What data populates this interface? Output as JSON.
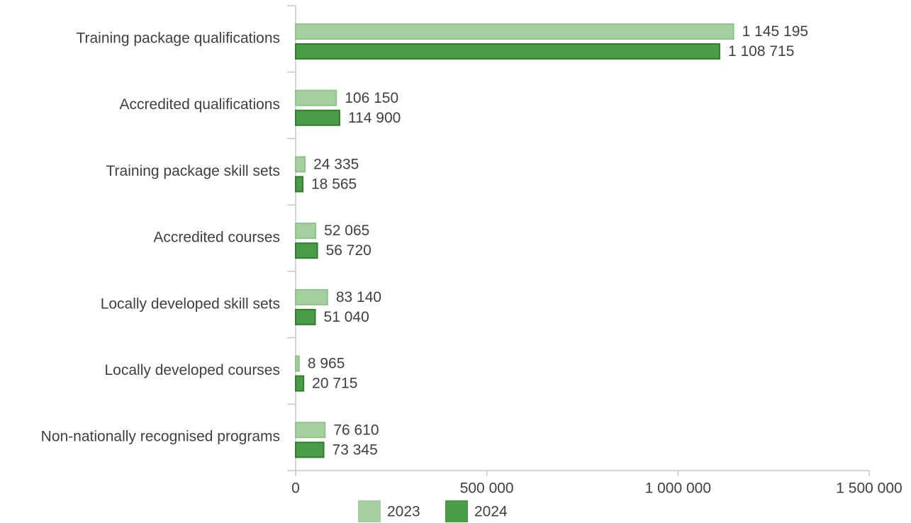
{
  "chart_data": {
    "type": "bar",
    "orientation": "horizontal",
    "categories": [
      "Training package qualifications",
      "Accredited qualifications",
      "Training package skill sets",
      "Accredited courses",
      "Locally developed skill sets",
      "Locally developed courses",
      "Non-nationally recognised programs"
    ],
    "series": [
      {
        "name": "2023",
        "color": "#a6cfa0",
        "values": [
          1145195,
          106150,
          24335,
          52065,
          83140,
          8965,
          76610
        ],
        "value_labels": [
          "1 145 195",
          "106 150",
          "24 335",
          "52 065",
          "83 140",
          "8 965",
          "76 610"
        ]
      },
      {
        "name": "2024",
        "color": "#4b9b48",
        "values": [
          1108715,
          114900,
          18565,
          56720,
          51040,
          20715,
          73345
        ],
        "value_labels": [
          "1 108 715",
          "114 900",
          "18 565",
          "56 720",
          "51 040",
          "20 715",
          "73 345"
        ]
      }
    ],
    "xlim": [
      0,
      1500000
    ],
    "xticks": [
      0,
      {
        "value": 500000,
        "label": "500 000"
      },
      {
        "value": 1000000,
        "label": "1 000 000"
      },
      {
        "value": 1500000,
        "label": "1 500 000"
      }
    ],
    "legend": "bottom"
  }
}
